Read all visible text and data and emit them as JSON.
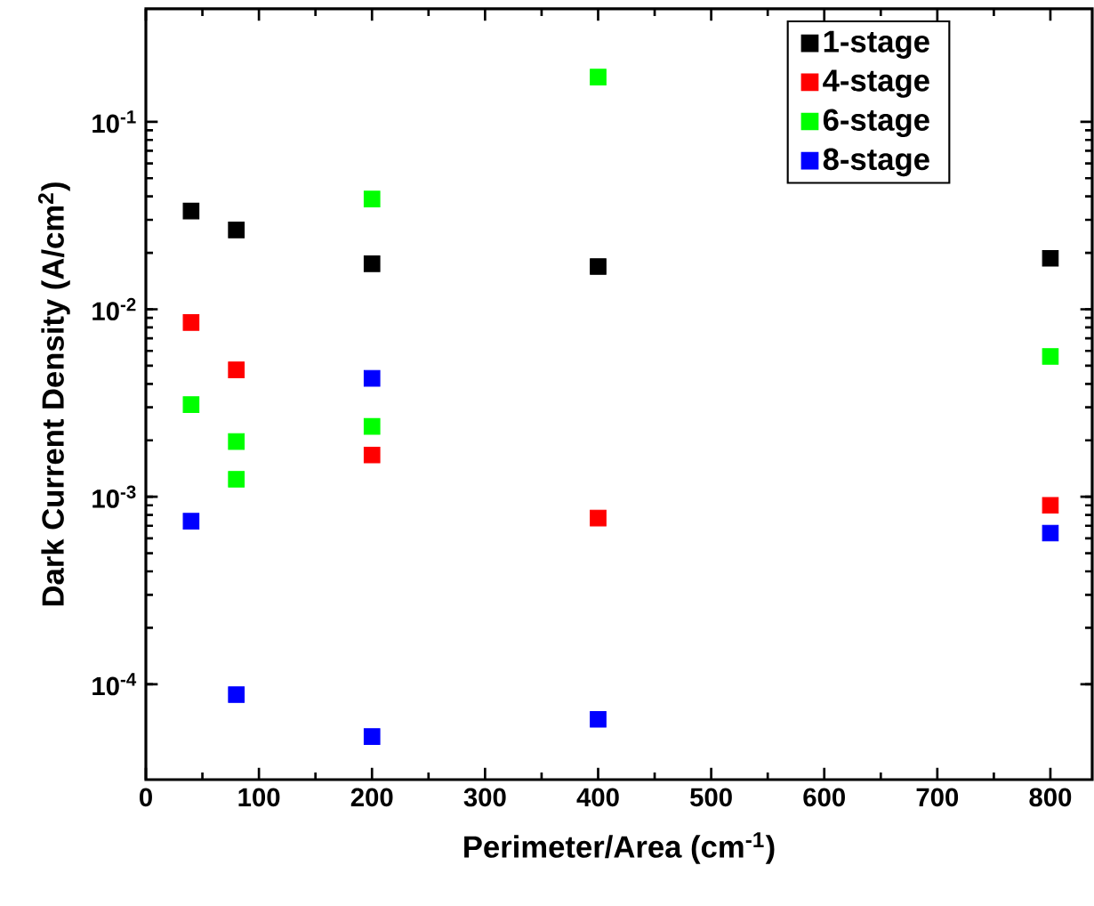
{
  "chart_data": {
    "type": "scatter",
    "xlabel": "Perimeter/Area (cm$^{-1}$)",
    "ylabel": "Dark Current Density (A/cm$^{2}$)",
    "xlim": [
      0,
      837
    ],
    "xticks": [
      0,
      100,
      200,
      300,
      400,
      500,
      600,
      700,
      800
    ],
    "ylim": [
      3.1e-05,
      0.4
    ],
    "yticks": [
      {
        "value": 0.0001,
        "label": "10$^{-4}$"
      },
      {
        "value": 0.001,
        "label": "10$^{-3}$"
      },
      {
        "value": 0.01,
        "label": "10$^{-2}$"
      },
      {
        "value": 0.1,
        "label": "10$^{-1}$"
      }
    ],
    "log": "y",
    "legend": "top right",
    "marker": "square",
    "series": [
      {
        "name": "1-stage",
        "color": "#000000",
        "x": [
          40,
          80,
          200,
          400,
          800
        ],
        "values": [
          0.0334,
          0.0265,
          0.0175,
          0.0169,
          0.0187
        ]
      },
      {
        "name": "4-stage",
        "color": "#ff0000",
        "x": [
          40,
          80,
          200,
          400,
          800
        ],
        "values": [
          0.0085,
          0.00475,
          0.00167,
          0.00077,
          0.0009
        ]
      },
      {
        "name": "6-stage",
        "color": "#00ff00",
        "x": [
          40,
          80,
          80,
          200,
          200,
          400,
          800
        ],
        "values": [
          0.0031,
          0.00197,
          0.00124,
          0.0387,
          0.00237,
          0.173,
          0.0056
        ]
      },
      {
        "name": "8-stage",
        "color": "#0000ff",
        "x": [
          40,
          80,
          200,
          200,
          400,
          800
        ],
        "values": [
          0.00074,
          8.8e-05,
          0.00428,
          5.26e-05,
          6.5e-05,
          0.00064
        ]
      }
    ]
  }
}
